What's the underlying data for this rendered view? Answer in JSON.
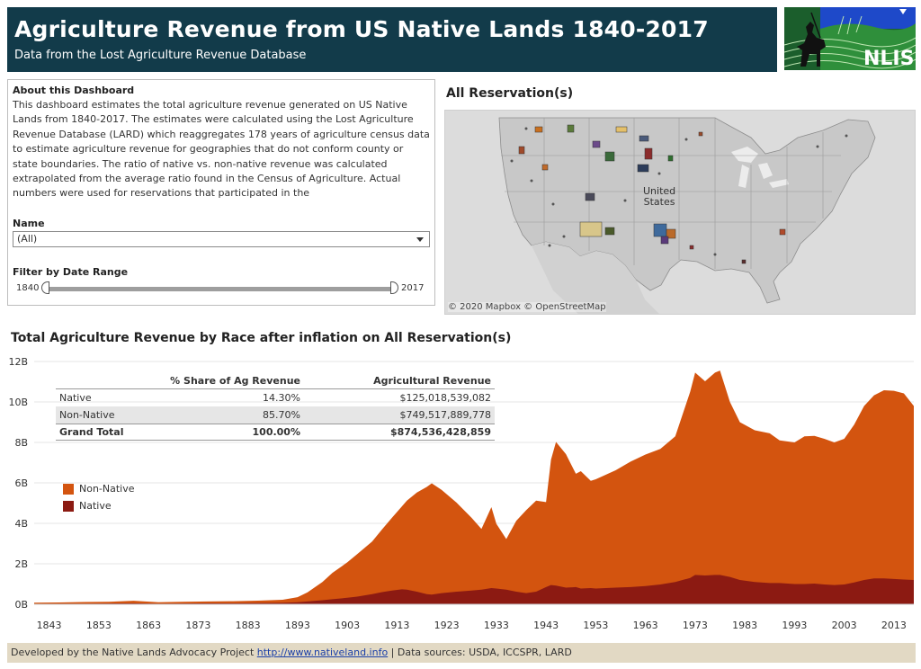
{
  "header": {
    "title": "Agriculture Revenue from US Native Lands 1840-2017",
    "subtitle": "Data from the Lost Agriculture Revenue Database",
    "logo_text": "NLIS"
  },
  "about": {
    "heading": "About this Dashboard",
    "body": "This dashboard estimates the total agriculture revenue generated on US Native Lands from 1840-2017. The estimates were calculated using the Lost Agriculture Revenue Database (LARD) which reaggregates 178 years of agriculture census data  to estimate agriculture revenue for geographies that do not conform county or state boundaries. The ratio of native vs. non-native revenue was calculated extrapolated from the average ratio found in the Census of Agriculture. Actual numbers were used for reservations that participated in the",
    "name_label": "Name",
    "name_value": "(All)",
    "filter_label": "Filter by Date Range",
    "range_min": "1840",
    "range_max": "2017"
  },
  "map": {
    "title": "All Reservation(s)",
    "label_line1": "United",
    "label_line2": "States",
    "attribution": "© 2020 Mapbox  © OpenStreetMap"
  },
  "summary_table": {
    "col_share": "% Share of Ag Revenue",
    "col_revenue": "Agricultural Revenue",
    "rows": [
      {
        "label": "Native",
        "share": "14.30%",
        "revenue": "$125,018,539,082"
      },
      {
        "label": "Non-Native",
        "share": "85.70%",
        "revenue": "$749,517,889,778"
      },
      {
        "label": "Grand Total",
        "share": "100.00%",
        "revenue": "$874,536,428,859"
      }
    ]
  },
  "legend": {
    "items": [
      {
        "label": "Non-Native",
        "color": "#d3540f"
      },
      {
        "label": "Native",
        "color": "#8c1a12"
      }
    ]
  },
  "chart_data": {
    "type": "area",
    "title": "Total Agriculture Revenue by Race after inflation on All Reservation(s)",
    "xlabel": "",
    "ylabel": "",
    "stacked": true,
    "xlim": [
      1840,
      2017
    ],
    "ylim": [
      0,
      12
    ],
    "y_tick_values": [
      0,
      2,
      4,
      6,
      8,
      10,
      12
    ],
    "y_tick_labels": [
      "0B",
      "2B",
      "4B",
      "6B",
      "8B",
      "10B",
      "12B"
    ],
    "x_tick_labels": [
      "1843",
      "1853",
      "1863",
      "1873",
      "1883",
      "1893",
      "1903",
      "1913",
      "1923",
      "1933",
      "1943",
      "1953",
      "1963",
      "1973",
      "1983",
      "1993",
      "2003",
      "2013"
    ],
    "x": [
      1840,
      1845,
      1850,
      1855,
      1860,
      1865,
      1870,
      1875,
      1880,
      1885,
      1890,
      1893,
      1895,
      1898,
      1900,
      1903,
      1905,
      1908,
      1910,
      1912,
      1914,
      1915,
      1917,
      1919,
      1920,
      1922,
      1925,
      1928,
      1930,
      1932,
      1933,
      1935,
      1937,
      1939,
      1941,
      1943,
      1944,
      1945,
      1947,
      1949,
      1950,
      1952,
      1953,
      1955,
      1957,
      1960,
      1963,
      1966,
      1969,
      1972,
      1973,
      1975,
      1977,
      1978,
      1980,
      1982,
      1985,
      1988,
      1990,
      1993,
      1995,
      1997,
      1999,
      2001,
      2003,
      2005,
      2007,
      2009,
      2011,
      2013,
      2015,
      2017
    ],
    "series": [
      {
        "name": "Native",
        "values": [
          0.02,
          0.03,
          0.03,
          0.04,
          0.05,
          0.03,
          0.04,
          0.05,
          0.05,
          0.06,
          0.07,
          0.1,
          0.14,
          0.2,
          0.25,
          0.32,
          0.38,
          0.5,
          0.6,
          0.68,
          0.74,
          0.72,
          0.62,
          0.5,
          0.48,
          0.55,
          0.62,
          0.68,
          0.72,
          0.8,
          0.78,
          0.72,
          0.62,
          0.55,
          0.62,
          0.85,
          0.95,
          0.92,
          0.82,
          0.85,
          0.78,
          0.8,
          0.78,
          0.8,
          0.82,
          0.85,
          0.9,
          0.98,
          1.1,
          1.3,
          1.45,
          1.42,
          1.45,
          1.45,
          1.35,
          1.2,
          1.1,
          1.05,
          1.05,
          1.0,
          1.0,
          1.02,
          0.98,
          0.95,
          0.98,
          1.08,
          1.2,
          1.28,
          1.28,
          1.25,
          1.22,
          1.2
        ]
      },
      {
        "name": "Non-Native",
        "values": [
          0.06,
          0.06,
          0.08,
          0.08,
          0.12,
          0.07,
          0.08,
          0.09,
          0.1,
          0.12,
          0.15,
          0.25,
          0.45,
          0.9,
          1.3,
          1.75,
          2.1,
          2.6,
          3.1,
          3.6,
          4.1,
          4.4,
          4.9,
          5.3,
          5.5,
          5.1,
          4.4,
          3.6,
          3.0,
          4.0,
          3.2,
          2.5,
          3.5,
          4.1,
          4.5,
          4.2,
          6.2,
          7.1,
          6.6,
          5.6,
          5.8,
          5.3,
          5.4,
          5.6,
          5.8,
          6.2,
          6.5,
          6.7,
          7.2,
          9.2,
          10.0,
          9.6,
          10.0,
          10.1,
          8.65,
          7.8,
          7.5,
          7.4,
          7.05,
          7.0,
          7.3,
          7.3,
          7.2,
          7.05,
          7.2,
          7.8,
          8.6,
          9.05,
          9.3,
          9.3,
          9.2,
          8.6
        ]
      }
    ]
  },
  "footer": {
    "prefix": "Developed by the Native Lands Advocacy Project ",
    "link": "http://www.nativeland.info",
    "suffix": " | Data sources: USDA, ICCSPR, LARD"
  }
}
